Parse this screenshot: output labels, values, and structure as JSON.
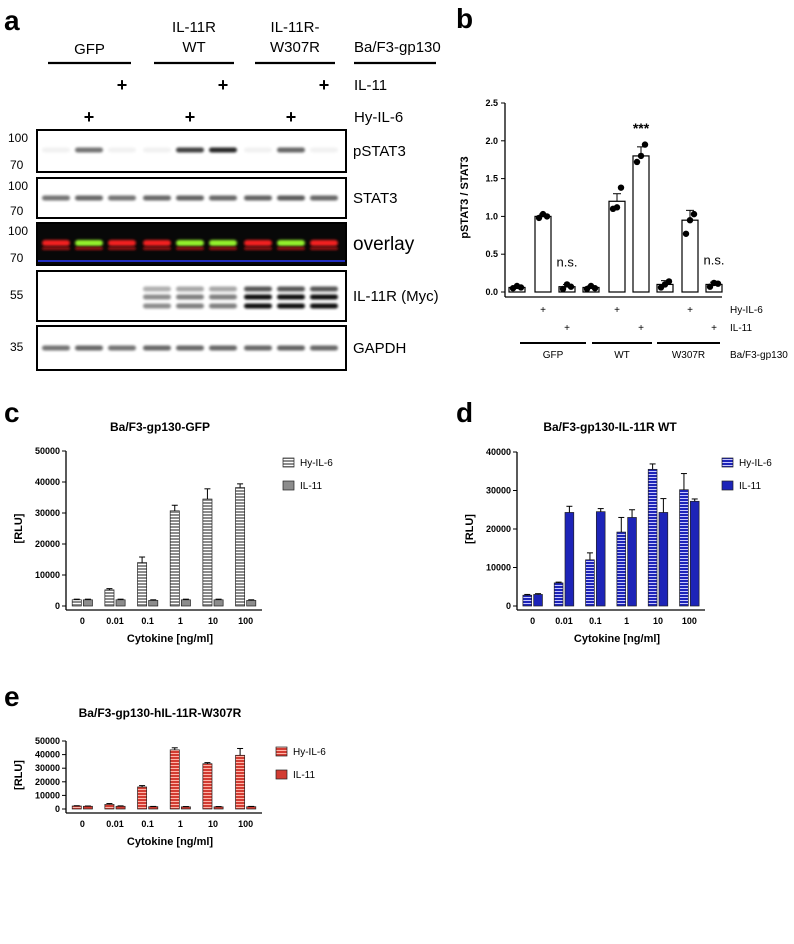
{
  "panel_labels": {
    "a": "a",
    "b": "b",
    "c": "c",
    "d": "d",
    "e": "e"
  },
  "blot": {
    "groups": [
      "GFP",
      "IL-11R\nWT",
      "IL-11R-\nW307R"
    ],
    "group_suffix": "Ba/F3-gp130",
    "treatments": [
      "IL-11",
      "Hy-IL-6"
    ],
    "il11_lane_idx": [
      2,
      5,
      8
    ],
    "hyil6_lane_idx": [
      1,
      4,
      7
    ],
    "plus_symbol": "+",
    "panels": [
      {
        "name": "pSTAT3",
        "markers": [
          "100",
          "70"
        ],
        "bg": "#ffffff",
        "band": "#000000",
        "intensities": [
          0.05,
          0.55,
          0.05,
          0.05,
          0.75,
          0.85,
          0.05,
          0.6,
          0.05
        ]
      },
      {
        "name": "STAT3",
        "markers": [
          "100",
          "70"
        ],
        "bg": "#ffffff",
        "band": "#000000",
        "intensities": [
          0.55,
          0.6,
          0.55,
          0.6,
          0.62,
          0.6,
          0.62,
          0.65,
          0.6
        ]
      },
      {
        "name": "overlay",
        "markers": [
          "100",
          "70"
        ],
        "bg": "#080808",
        "band": "overlay",
        "intensities": [
          0.2,
          0.8,
          0.2,
          0.2,
          0.9,
          0.9,
          0.2,
          0.8,
          0.2
        ]
      },
      {
        "name": "IL-11R (Myc)",
        "markers": [
          "55"
        ],
        "bg": "#ffffff",
        "band": "#000000",
        "intensities": [
          0,
          0,
          0,
          0.45,
          0.5,
          0.5,
          0.95,
          0.95,
          0.95
        ]
      },
      {
        "name": "GAPDH",
        "markers": [
          "35"
        ],
        "bg": "#ffffff",
        "band": "#000000",
        "intensities": [
          0.55,
          0.6,
          0.55,
          0.6,
          0.6,
          0.6,
          0.6,
          0.62,
          0.6
        ]
      }
    ]
  },
  "chart_data": [
    {
      "id": "b",
      "type": "bar",
      "ylabel": "pSTAT3 / STAT3",
      "ylim": [
        0,
        2.5
      ],
      "yticks": [
        "0.0",
        "0.5",
        "1.0",
        "1.5",
        "2.0",
        "2.5"
      ],
      "values": [
        0.06,
        1.0,
        0.07,
        0.06,
        1.2,
        1.8,
        0.1,
        0.95,
        0.1
      ],
      "errors": [
        0.02,
        0.03,
        0.03,
        0.02,
        0.1,
        0.12,
        0.05,
        0.13,
        0.03
      ],
      "points": [
        [
          0.05,
          0.08,
          0.06
        ],
        [
          0.98,
          1.03,
          1.0
        ],
        [
          0.04,
          0.1,
          0.07
        ],
        [
          0.04,
          0.08,
          0.05
        ],
        [
          1.1,
          1.12,
          1.38
        ],
        [
          1.72,
          1.8,
          1.95
        ],
        [
          0.06,
          0.1,
          0.14
        ],
        [
          0.77,
          0.95,
          1.03
        ],
        [
          0.07,
          0.12,
          0.11
        ]
      ],
      "annotations": [
        {
          "index": 2,
          "text": "n.s."
        },
        {
          "index": 5,
          "text": "***"
        },
        {
          "index": 8,
          "text": "n.s."
        }
      ],
      "conditions": [
        {
          "label": "Hy-IL-6",
          "marks": [
            1,
            4,
            7
          ]
        },
        {
          "label": "IL-11",
          "marks": [
            2,
            5,
            8
          ]
        }
      ],
      "groups": [
        "GFP",
        "WT",
        "W307R"
      ],
      "group_suffix": "Ba/F3-gp130",
      "grid": false
    },
    {
      "id": "c",
      "type": "bar",
      "title": "Ba/F3-gp130-GFP",
      "xlabel": "Cytokine [ng/ml]",
      "ylabel": "[RLU]",
      "ylim": [
        0,
        50000
      ],
      "yticks": [
        "0",
        "10000",
        "20000",
        "30000",
        "40000",
        "50000"
      ],
      "categories": [
        "0",
        "0.01",
        "0.1",
        "1",
        "10",
        "100"
      ],
      "color": "#8c8c8c",
      "stripe": "#ffffff",
      "series": [
        {
          "name": "Hy-IL-6",
          "values": [
            2000,
            5200,
            14000,
            30700,
            34500,
            38200
          ],
          "errors": [
            200,
            400,
            1800,
            1800,
            3300,
            1200
          ]
        },
        {
          "name": "IL-11",
          "values": [
            2000,
            2000,
            1800,
            2000,
            2000,
            1800
          ],
          "errors": [
            200,
            200,
            200,
            200,
            200,
            200
          ]
        }
      ],
      "legend": "top-right",
      "grid": false
    },
    {
      "id": "d",
      "type": "bar",
      "title": "Ba/F3-gp130-IL-11R WT",
      "xlabel": "Cytokine [ng/ml]",
      "ylabel": "[RLU]",
      "ylim": [
        0,
        40000
      ],
      "yticks": [
        "0",
        "10000",
        "20000",
        "30000",
        "40000"
      ],
      "categories": [
        "0",
        "0.01",
        "0.1",
        "1",
        "10",
        "100"
      ],
      "color": "#1d24b8",
      "stripe": "#c8c8ff",
      "series": [
        {
          "name": "Hy-IL-6",
          "values": [
            2800,
            6000,
            12000,
            19200,
            35500,
            30200
          ],
          "errors": [
            200,
            200,
            1800,
            3800,
            1400,
            4200
          ]
        },
        {
          "name": "IL-11",
          "values": [
            3000,
            24300,
            24500,
            23000,
            24300,
            27200
          ],
          "errors": [
            200,
            1600,
            800,
            2000,
            3600,
            600
          ]
        }
      ],
      "legend": "top-right",
      "grid": false
    },
    {
      "id": "e",
      "type": "bar",
      "title": "Ba/F3-gp130-hIL-11R-W307R",
      "xlabel": "Cytokine [ng/ml]",
      "ylabel": "[RLU]",
      "ylim": [
        0,
        50000
      ],
      "yticks": [
        "0",
        "10000",
        "20000",
        "30000",
        "40000",
        "50000"
      ],
      "categories": [
        "0",
        "0.01",
        "0.1",
        "1",
        "10",
        "100"
      ],
      "color": "#d23c32",
      "stripe": "#ffb4a8",
      "series": [
        {
          "name": "Hy-IL-6",
          "values": [
            2200,
            3400,
            16200,
            43500,
            33300,
            39500
          ],
          "errors": [
            200,
            600,
            1000,
            1500,
            800,
            5000
          ]
        },
        {
          "name": "IL-11",
          "values": [
            2000,
            2000,
            1700,
            1600,
            1600,
            1700
          ],
          "errors": [
            200,
            300,
            200,
            200,
            200,
            200
          ]
        }
      ],
      "legend": "top-right",
      "grid": false
    }
  ]
}
